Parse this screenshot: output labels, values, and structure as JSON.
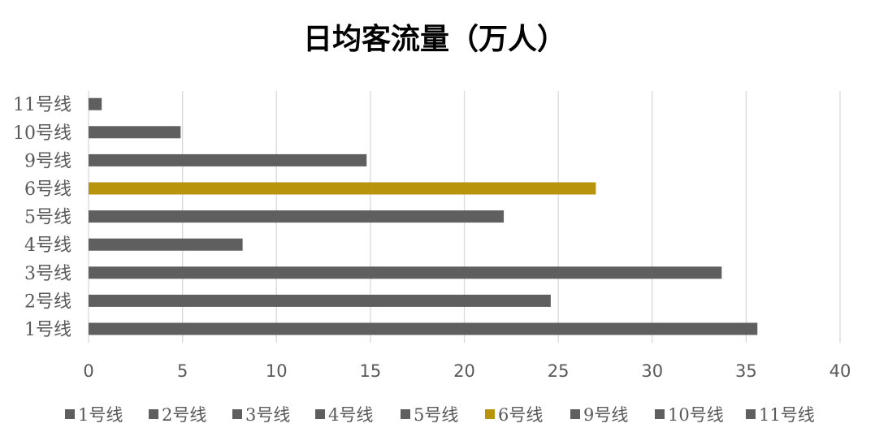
{
  "chart_data": {
    "type": "bar",
    "orientation": "horizontal",
    "title": "日均客流量（万人）",
    "xlabel": "",
    "ylabel": "",
    "categories": [
      "1号线",
      "2号线",
      "3号线",
      "4号线",
      "5号线",
      "6号线",
      "9号线",
      "10号线",
      "11号线"
    ],
    "series": [
      {
        "name": "日均客流量",
        "values": [
          35.6,
          24.6,
          33.7,
          8.2,
          22.1,
          27.0,
          14.8,
          4.9,
          0.7
        ]
      }
    ],
    "xlim": [
      0,
      40
    ],
    "xticks": [
      "0",
      "5",
      "10",
      "15",
      "20",
      "25",
      "30",
      "35",
      "40"
    ],
    "grid": true,
    "legend_position": "bottom",
    "legend": [
      "1号线",
      "2号线",
      "3号线",
      "4号线",
      "5号线",
      "6号线",
      "9号线",
      "10号线",
      "11号线"
    ],
    "colors": {
      "default": "#5f5f5f",
      "highlight": "#b8930c",
      "highlight_category": "6号线",
      "grid": "#d9d9d9",
      "text": "#595959",
      "title": "#404040"
    }
  }
}
